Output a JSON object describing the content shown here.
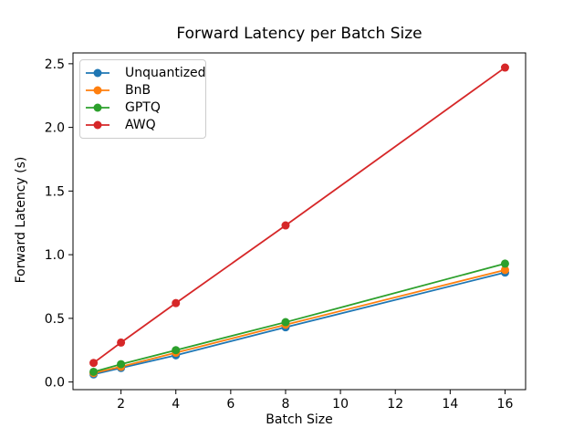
{
  "chart_data": {
    "type": "line",
    "title": "Forward Latency per Batch Size",
    "xlabel": "Batch Size",
    "ylabel": "Forward Latency (s)",
    "x": [
      1,
      2,
      4,
      8,
      16
    ],
    "series": [
      {
        "name": "Unquantized",
        "color": "#1f77b4",
        "values": [
          0.06,
          0.11,
          0.21,
          0.43,
          0.86
        ]
      },
      {
        "name": "BnB",
        "color": "#ff7f0e",
        "values": [
          0.07,
          0.12,
          0.23,
          0.45,
          0.88
        ]
      },
      {
        "name": "GPTQ",
        "color": "#2ca02c",
        "values": [
          0.08,
          0.14,
          0.25,
          0.47,
          0.93
        ]
      },
      {
        "name": "AWQ",
        "color": "#d62728",
        "values": [
          0.15,
          0.31,
          0.62,
          1.23,
          2.47
        ]
      }
    ],
    "xlim": [
      0.25,
      16.75
    ],
    "ylim": [
      -0.06,
      2.585
    ],
    "xticks": [
      2,
      4,
      6,
      8,
      10,
      12,
      14,
      16
    ],
    "xtick_labels": [
      "2",
      "4",
      "6",
      "8",
      "10",
      "12",
      "14",
      "16"
    ],
    "yticks": [
      0.0,
      0.5,
      1.0,
      1.5,
      2.0,
      2.5
    ],
    "ytick_labels": [
      "0.0",
      "0.5",
      "1.0",
      "1.5",
      "2.0",
      "2.5"
    ],
    "grid": false,
    "legend_position": "upper left",
    "marker": "o",
    "spine_color": "#000000",
    "tick_label_color": "#000000"
  }
}
